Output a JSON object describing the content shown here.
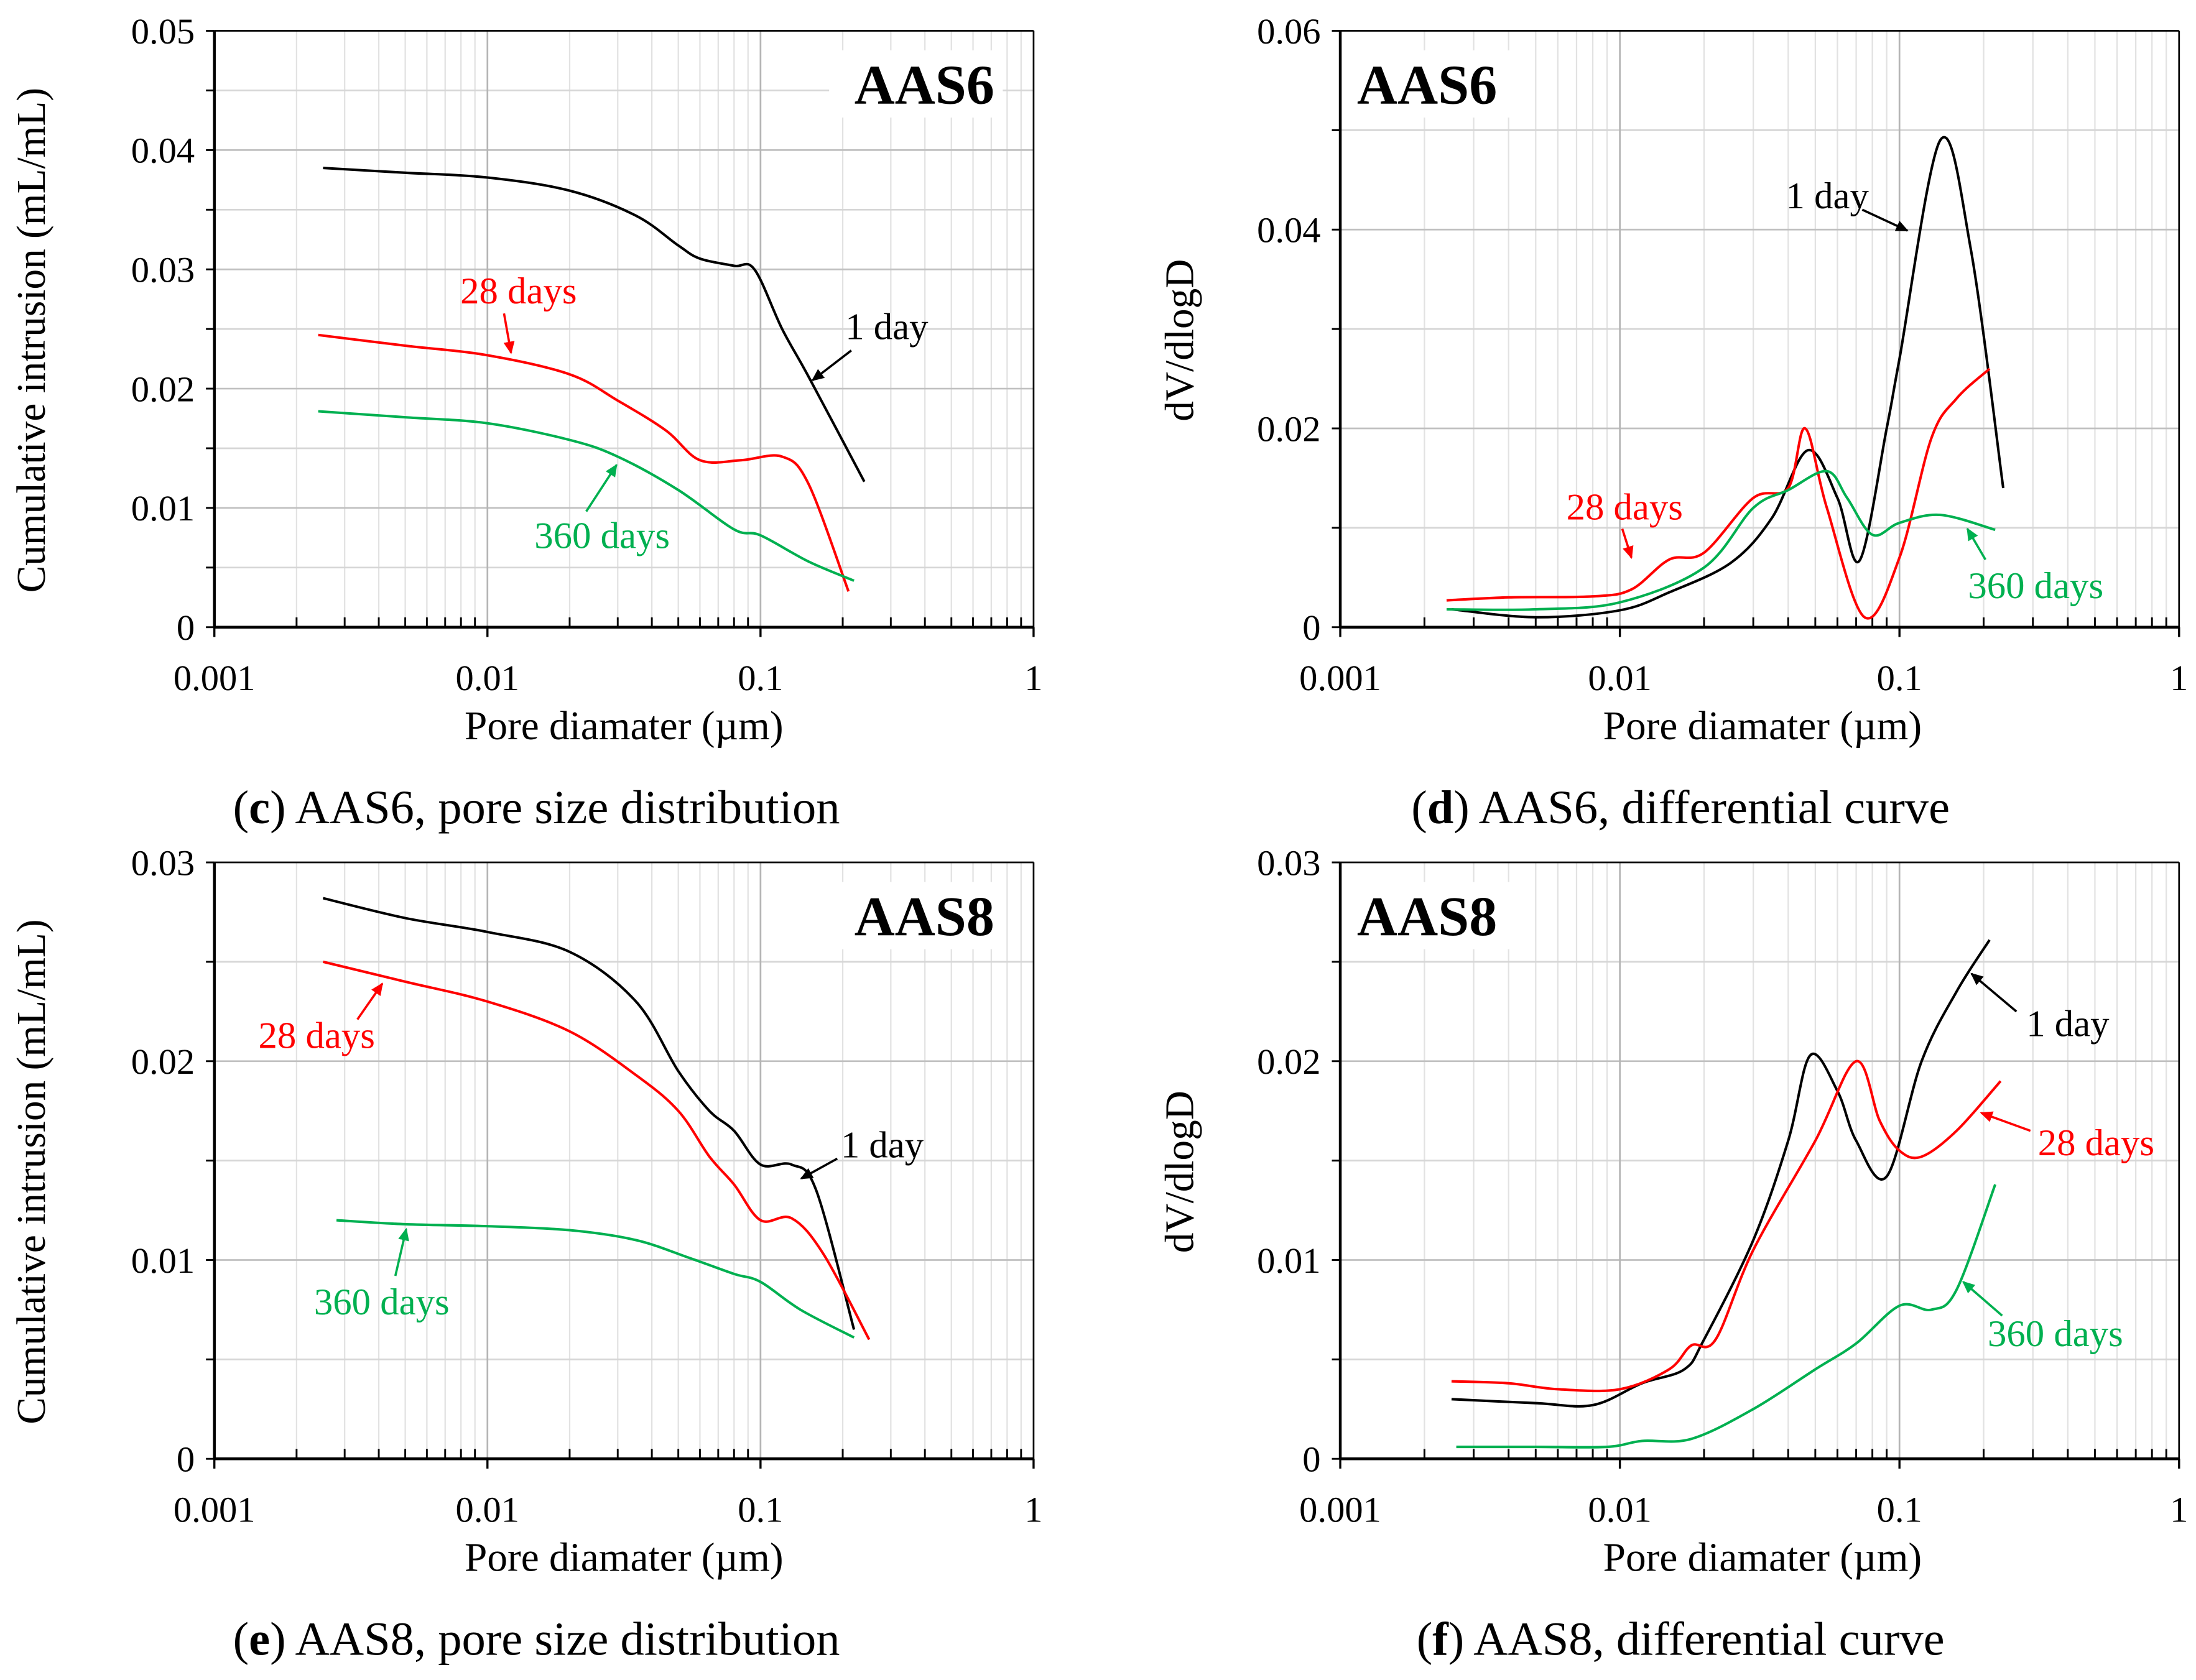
{
  "chart_data": [
    {
      "panel": "c",
      "type": "line",
      "title": "AAS6",
      "tag_position": "top-right",
      "caption_letter": "c",
      "caption_text": ") AAS6, pore size distribution",
      "caption_open": "(",
      "xlabel": "Pore diamater (µm)",
      "ylabel": "Cumulative intrusion (mL/mL)",
      "xscale": "log",
      "xlim": [
        0.001,
        1
      ],
      "ylim": [
        0,
        0.05
      ],
      "ymajor": 0.01,
      "yminor": 0.005,
      "xticks": [
        "0.001",
        "0.01",
        "0.1",
        "1"
      ],
      "yticks": [
        "0",
        "0.01",
        "0.02",
        "0.03",
        "0.04",
        "0.05"
      ],
      "grid": true,
      "series": [
        {
          "name": "1 day",
          "color": "#000000",
          "points": [
            [
              0.0025,
              0.0385
            ],
            [
              0.005,
              0.0381
            ],
            [
              0.01,
              0.0377
            ],
            [
              0.02,
              0.0366
            ],
            [
              0.035,
              0.0345
            ],
            [
              0.05,
              0.032
            ],
            [
              0.06,
              0.0309
            ],
            [
              0.08,
              0.0303
            ],
            [
              0.095,
              0.03
            ],
            [
              0.12,
              0.025
            ],
            [
              0.15,
              0.021
            ],
            [
              0.24,
              0.0122
            ]
          ]
        },
        {
          "name": "28 days",
          "color": "#ff0000",
          "points": [
            [
              0.0024,
              0.0245
            ],
            [
              0.005,
              0.0236
            ],
            [
              0.01,
              0.0228
            ],
            [
              0.02,
              0.0212
            ],
            [
              0.03,
              0.019
            ],
            [
              0.045,
              0.0165
            ],
            [
              0.06,
              0.014
            ],
            [
              0.085,
              0.014
            ],
            [
              0.12,
              0.0143
            ],
            [
              0.15,
              0.012
            ],
            [
              0.21,
              0.003
            ]
          ]
        },
        {
          "name": "360 days",
          "color": "#00b050",
          "points": [
            [
              0.0024,
              0.0181
            ],
            [
              0.005,
              0.0176
            ],
            [
              0.01,
              0.0171
            ],
            [
              0.02,
              0.0157
            ],
            [
              0.03,
              0.0143
            ],
            [
              0.05,
              0.0115
            ],
            [
              0.08,
              0.0082
            ],
            [
              0.1,
              0.0077
            ],
            [
              0.15,
              0.0055
            ],
            [
              0.22,
              0.0039
            ]
          ]
        }
      ],
      "annotations": [
        {
          "text": "1 day",
          "color": "#000000",
          "label": [
            0.29,
            0.0252
          ],
          "arrow_from": [
            0.215,
            0.0232
          ],
          "arrow_to": [
            0.155,
            0.0207
          ]
        },
        {
          "text": "28 days",
          "color": "#ff0000",
          "label": [
            0.013,
            0.0282
          ],
          "arrow_from": [
            0.0115,
            0.0263
          ],
          "arrow_to": [
            0.0122,
            0.023
          ]
        },
        {
          "text": "360 days",
          "color": "#00b050",
          "label": [
            0.0263,
            0.0077
          ],
          "arrow_from": [
            0.023,
            0.0097
          ],
          "arrow_to": [
            0.0297,
            0.0136
          ]
        }
      ]
    },
    {
      "panel": "d",
      "type": "line",
      "title": "AAS6",
      "tag_position": "top-left",
      "caption_letter": "d",
      "caption_text": ") AAS6, differential curve",
      "caption_open": "(",
      "xlabel": "Pore diamater (µm)",
      "ylabel": "dV/dlogD",
      "xscale": "log",
      "xlim": [
        0.001,
        1
      ],
      "ylim": [
        0,
        0.06
      ],
      "ymajor": 0.02,
      "yminor": 0.01,
      "xticks": [
        "0.001",
        "0.01",
        "0.1",
        "1"
      ],
      "yticks": [
        "0",
        "0.02",
        "0.04",
        "0.06"
      ],
      "grid": true,
      "series": [
        {
          "name": "1 day",
          "color": "#000000",
          "points": [
            [
              0.0025,
              0.0018
            ],
            [
              0.005,
              0.001
            ],
            [
              0.01,
              0.0017
            ],
            [
              0.015,
              0.0035
            ],
            [
              0.025,
              0.0065
            ],
            [
              0.035,
              0.011
            ],
            [
              0.047,
              0.0178
            ],
            [
              0.06,
              0.013
            ],
            [
              0.072,
              0.0067
            ],
            [
              0.09,
              0.02
            ],
            [
              0.1,
              0.027
            ],
            [
              0.14,
              0.049
            ],
            [
              0.18,
              0.038
            ],
            [
              0.235,
              0.014
            ]
          ]
        },
        {
          "name": "28 days",
          "color": "#ff0000",
          "points": [
            [
              0.0024,
              0.0027
            ],
            [
              0.004,
              0.003
            ],
            [
              0.008,
              0.0031
            ],
            [
              0.011,
              0.0038
            ],
            [
              0.015,
              0.0068
            ],
            [
              0.02,
              0.0075
            ],
            [
              0.03,
              0.013
            ],
            [
              0.04,
              0.014
            ],
            [
              0.046,
              0.02
            ],
            [
              0.055,
              0.012
            ],
            [
              0.075,
              0.001
            ],
            [
              0.1,
              0.007
            ],
            [
              0.13,
              0.019
            ],
            [
              0.16,
              0.023
            ],
            [
              0.21,
              0.026
            ]
          ]
        },
        {
          "name": "360 days",
          "color": "#00b050",
          "points": [
            [
              0.0024,
              0.0018
            ],
            [
              0.005,
              0.0018
            ],
            [
              0.01,
              0.0025
            ],
            [
              0.02,
              0.006
            ],
            [
              0.03,
              0.012
            ],
            [
              0.04,
              0.0138
            ],
            [
              0.055,
              0.0157
            ],
            [
              0.065,
              0.013
            ],
            [
              0.08,
              0.0093
            ],
            [
              0.1,
              0.0105
            ],
            [
              0.14,
              0.0113
            ],
            [
              0.22,
              0.0098
            ]
          ]
        }
      ],
      "annotations": [
        {
          "text": "1 day",
          "color": "#000000",
          "label": [
            0.0552,
            0.0434
          ],
          "arrow_from": [
            0.0736,
            0.042
          ],
          "arrow_to": [
            0.1067,
            0.0399
          ]
        },
        {
          "text": "28 days",
          "color": "#ff0000",
          "label": [
            0.0104,
            0.0121
          ],
          "arrow_from": [
            0.0102,
            0.0099
          ],
          "arrow_to": [
            0.011,
            0.007
          ]
        },
        {
          "text": "360 days",
          "color": "#00b050",
          "label": [
            0.307,
            0.0042
          ],
          "arrow_from": [
            0.203,
            0.0068
          ],
          "arrow_to": [
            0.175,
            0.0099
          ]
        }
      ]
    },
    {
      "panel": "e",
      "type": "line",
      "title": "AAS8",
      "tag_position": "top-right",
      "caption_letter": "e",
      "caption_text": ") AAS8, pore size distribution",
      "caption_open": "(",
      "xlabel": "Pore diamater (µm)",
      "ylabel": "Cumulative intrusion (mL/mL)",
      "xscale": "log",
      "xlim": [
        0.001,
        1
      ],
      "ylim": [
        0,
        0.03
      ],
      "ymajor": 0.01,
      "yminor": 0.005,
      "xticks": [
        "0.001",
        "0.01",
        "0.1",
        "1"
      ],
      "yticks": [
        "0",
        "0.01",
        "0.02",
        "0.03"
      ],
      "grid": true,
      "series": [
        {
          "name": "1 day",
          "color": "#000000",
          "points": [
            [
              0.0025,
              0.0282
            ],
            [
              0.005,
              0.0272
            ],
            [
              0.01,
              0.0265
            ],
            [
              0.02,
              0.0255
            ],
            [
              0.035,
              0.023
            ],
            [
              0.05,
              0.0195
            ],
            [
              0.065,
              0.0175
            ],
            [
              0.08,
              0.0165
            ],
            [
              0.1,
              0.0148
            ],
            [
              0.13,
              0.0148
            ],
            [
              0.16,
              0.0135
            ],
            [
              0.22,
              0.0065
            ]
          ]
        },
        {
          "name": "28 days",
          "color": "#ff0000",
          "points": [
            [
              0.0025,
              0.025
            ],
            [
              0.005,
              0.024
            ],
            [
              0.01,
              0.023
            ],
            [
              0.02,
              0.0215
            ],
            [
              0.035,
              0.0193
            ],
            [
              0.05,
              0.0175
            ],
            [
              0.065,
              0.0152
            ],
            [
              0.08,
              0.0138
            ],
            [
              0.1,
              0.012
            ],
            [
              0.13,
              0.0121
            ],
            [
              0.17,
              0.0103
            ],
            [
              0.25,
              0.006
            ]
          ]
        },
        {
          "name": "360 days",
          "color": "#00b050",
          "points": [
            [
              0.0028,
              0.012
            ],
            [
              0.005,
              0.0118
            ],
            [
              0.01,
              0.0117
            ],
            [
              0.02,
              0.0115
            ],
            [
              0.035,
              0.011
            ],
            [
              0.055,
              0.0101
            ],
            [
              0.08,
              0.0093
            ],
            [
              0.1,
              0.0089
            ],
            [
              0.14,
              0.0075
            ],
            [
              0.22,
              0.0061
            ]
          ]
        }
      ],
      "annotations": [
        {
          "text": "1 day",
          "color": "#000000",
          "label": [
            0.279,
            0.0158
          ],
          "arrow_from": [
            0.191,
            0.0151
          ],
          "arrow_to": [
            0.141,
            0.0141
          ]
        },
        {
          "text": "28 days",
          "color": "#ff0000",
          "label": [
            0.00237,
            0.0213
          ],
          "arrow_from": [
            0.00334,
            0.0221
          ],
          "arrow_to": [
            0.00412,
            0.0239
          ]
        },
        {
          "text": "360 days",
          "color": "#00b050",
          "label": [
            0.0041,
            0.0079
          ],
          "arrow_from": [
            0.0046,
            0.0092
          ],
          "arrow_to": [
            0.00504,
            0.01155
          ]
        }
      ]
    },
    {
      "panel": "f",
      "type": "line",
      "title": "AAS8",
      "tag_position": "top-left",
      "caption_letter": "f",
      "caption_text": ") AAS8, differential curve",
      "caption_open": "(",
      "xlabel": "Pore diamater (µm)",
      "ylabel": "dV/dlogD",
      "xscale": "log",
      "xlim": [
        0.001,
        1
      ],
      "ylim": [
        0,
        0.03
      ],
      "ymajor": 0.01,
      "yminor": 0.005,
      "xticks": [
        "0.001",
        "0.01",
        "0.1",
        "1"
      ],
      "yticks": [
        "0",
        "0.01",
        "0.02",
        "0.03"
      ],
      "grid": true,
      "series": [
        {
          "name": "1 day",
          "color": "#000000",
          "points": [
            [
              0.0025,
              0.003
            ],
            [
              0.005,
              0.0028
            ],
            [
              0.008,
              0.0027
            ],
            [
              0.012,
              0.0038
            ],
            [
              0.017,
              0.0045
            ],
            [
              0.02,
              0.006
            ],
            [
              0.03,
              0.011
            ],
            [
              0.04,
              0.016
            ],
            [
              0.048,
              0.0203
            ],
            [
              0.06,
              0.0185
            ],
            [
              0.07,
              0.016
            ],
            [
              0.09,
              0.0142
            ],
            [
              0.12,
              0.02
            ],
            [
              0.16,
              0.0235
            ],
            [
              0.21,
              0.0261
            ]
          ]
        },
        {
          "name": "28 days",
          "color": "#ff0000",
          "points": [
            [
              0.0025,
              0.0039
            ],
            [
              0.004,
              0.0038
            ],
            [
              0.006,
              0.0035
            ],
            [
              0.01,
              0.0035
            ],
            [
              0.015,
              0.0045
            ],
            [
              0.018,
              0.0057
            ],
            [
              0.022,
              0.006
            ],
            [
              0.03,
              0.0105
            ],
            [
              0.05,
              0.016
            ],
            [
              0.07,
              0.02
            ],
            [
              0.085,
              0.017
            ],
            [
              0.1,
              0.0155
            ],
            [
              0.12,
              0.0152
            ],
            [
              0.16,
              0.0165
            ],
            [
              0.23,
              0.019
            ]
          ]
        },
        {
          "name": "360 days",
          "color": "#00b050",
          "points": [
            [
              0.0026,
              0.0006
            ],
            [
              0.005,
              0.0006
            ],
            [
              0.009,
              0.0006
            ],
            [
              0.012,
              0.0009
            ],
            [
              0.018,
              0.001
            ],
            [
              0.03,
              0.0025
            ],
            [
              0.05,
              0.0045
            ],
            [
              0.07,
              0.0058
            ],
            [
              0.1,
              0.0077
            ],
            [
              0.13,
              0.0075
            ],
            [
              0.16,
              0.0085
            ],
            [
              0.22,
              0.0138
            ]
          ]
        }
      ],
      "annotations": [
        {
          "text": "1 day",
          "color": "#000000",
          "label": [
            0.4,
            0.0219
          ],
          "arrow_from": [
            0.262,
            0.0225
          ],
          "arrow_to": [
            0.181,
            0.0244
          ]
        },
        {
          "text": "28 days",
          "color": "#ff0000",
          "label": [
            0.505,
            0.0159
          ],
          "arrow_from": [
            0.294,
            0.0165
          ],
          "arrow_to": [
            0.196,
            0.0174
          ]
        },
        {
          "text": "360 days",
          "color": "#00b050",
          "label": [
            0.361,
            0.0063
          ],
          "arrow_from": [
            0.233,
            0.0072
          ],
          "arrow_to": [
            0.169,
            0.0089
          ]
        }
      ]
    }
  ]
}
